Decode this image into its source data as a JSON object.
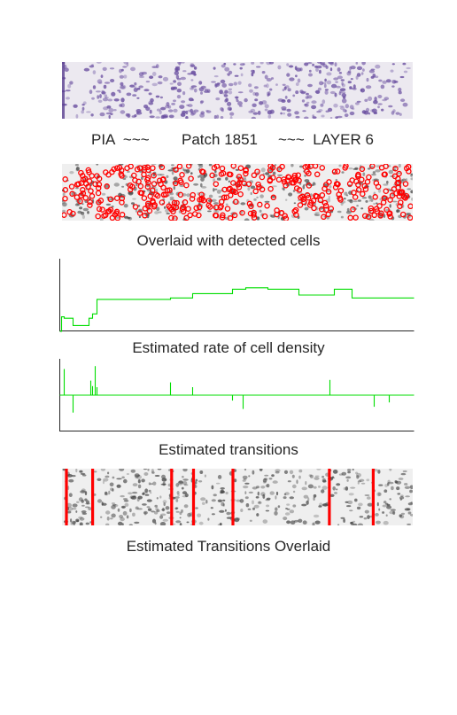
{
  "header": {
    "left": "PIA  ~~~",
    "middle": "Patch 1851",
    "right": "~~~  LAYER 6"
  },
  "captions": {
    "cells": "Overlaid with detected cells",
    "density": "Estimated rate of cell density",
    "transitions": "Estimated transitions",
    "overlay": "Estimated Transitions Overlaid"
  },
  "colors": {
    "stain": "#6a4fa0",
    "cell_marker": "#ff0000",
    "curve": "#00dd00",
    "transition_line": "#ff0000"
  },
  "chart_data": [
    {
      "type": "line",
      "title": "Estimated rate of cell density",
      "xlim": [
        0,
        400
      ],
      "ylim": [
        0,
        1
      ],
      "x": [
        0,
        2,
        2,
        5,
        5,
        15,
        15,
        33,
        33,
        37,
        37,
        42,
        42,
        125,
        125,
        150,
        150,
        195,
        195,
        210,
        210,
        210,
        210,
        235,
        235,
        270,
        270,
        310,
        310,
        330,
        330,
        400
      ],
      "y": [
        0,
        0,
        0.2,
        0.2,
        0.18,
        0.18,
        0.08,
        0.08,
        0.18,
        0.18,
        0.24,
        0.24,
        0.44,
        0.44,
        0.46,
        0.46,
        0.52,
        0.52,
        0.58,
        0.58,
        0.6,
        0.6,
        0.6,
        0.6,
        0.58,
        0.58,
        0.5,
        0.5,
        0.58,
        0.58,
        0.46,
        0.46
      ]
    },
    {
      "type": "bar",
      "title": "Estimated transitions",
      "xlim": [
        0,
        400
      ],
      "ylim": [
        -1,
        1
      ],
      "x": [
        5,
        15,
        35,
        37,
        40,
        42,
        125,
        150,
        195,
        207,
        305,
        355,
        372
      ],
      "values": [
        0.72,
        -0.48,
        0.4,
        0.25,
        0.8,
        0.22,
        0.35,
        0.22,
        -0.15,
        -0.38,
        0.42,
        -0.32,
        -0.2
      ]
    }
  ],
  "transition_positions": [
    5,
    35,
    125,
    150,
    195,
    305,
    355
  ]
}
